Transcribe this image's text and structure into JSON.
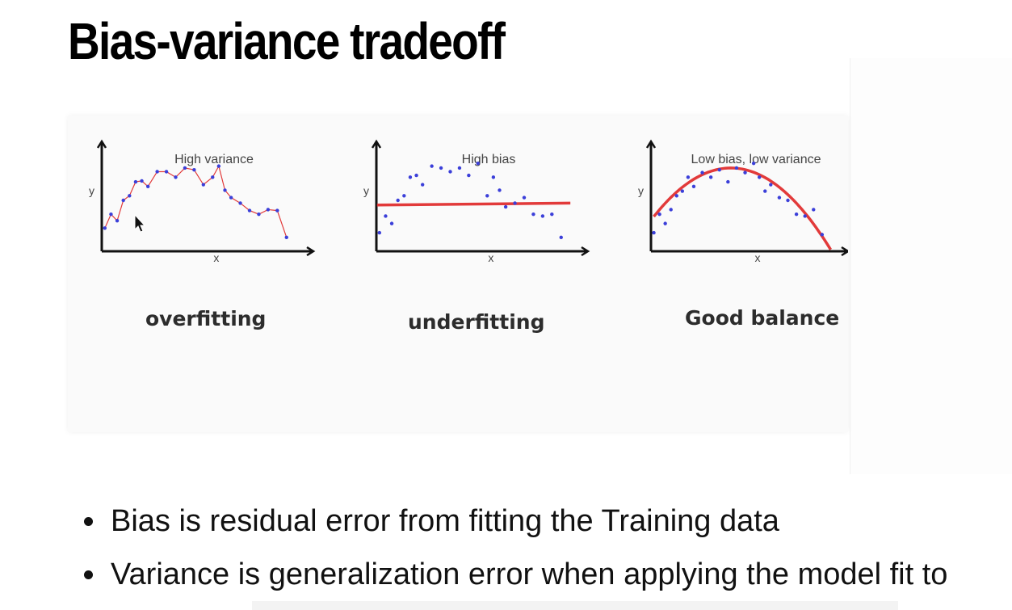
{
  "slide": {
    "title": "Bias-variance tradeoff",
    "bullets": [
      "Bias is residual error from fitting the Training data",
      "Variance is generalization error when applying the model fit to"
    ]
  },
  "figure": {
    "colors": {
      "points": "#3b3fd9",
      "fit_line": "#e23a3a",
      "axis": "#111111"
    },
    "icons": [
      "mouse-cursor-icon"
    ]
  },
  "chart_data": [
    {
      "type": "line",
      "title": "High variance",
      "xlabel": "x",
      "ylabel": "y",
      "caption": "overfitting",
      "x": [
        1,
        3,
        5,
        7,
        9,
        11,
        13,
        15,
        18,
        21,
        24,
        27,
        30,
        33,
        36,
        38,
        40,
        42,
        45,
        48,
        51,
        54,
        57,
        60
      ],
      "points": [
        25,
        40,
        33,
        55,
        60,
        75,
        76,
        70,
        86,
        86,
        80,
        90,
        88,
        72,
        80,
        92,
        66,
        58,
        52,
        44,
        40,
        45,
        44,
        15
      ],
      "fit": "interpolating (connects every point)",
      "xlim": [
        0,
        64
      ],
      "ylim": [
        0,
        110
      ]
    },
    {
      "type": "scatter",
      "title": "High bias",
      "xlabel": "x",
      "ylabel": "y",
      "caption": "underfitting",
      "x": [
        1,
        3,
        5,
        7,
        9,
        11,
        13,
        15,
        18,
        21,
        24,
        27,
        30,
        33,
        36,
        38,
        40,
        42,
        45,
        48,
        51,
        54,
        57,
        60
      ],
      "points": [
        20,
        38,
        30,
        55,
        60,
        80,
        82,
        72,
        92,
        90,
        86,
        90,
        82,
        95,
        60,
        80,
        66,
        48,
        52,
        58,
        40,
        38,
        40,
        15
      ],
      "fit_line": {
        "start": 50,
        "end": 52
      },
      "xlim": [
        0,
        64
      ],
      "ylim": [
        0,
        110
      ]
    },
    {
      "type": "scatter",
      "title": "Low bias, low variance",
      "xlabel": "x",
      "ylabel": "y",
      "caption": "Good balance",
      "x": [
        1,
        3,
        5,
        7,
        9,
        11,
        13,
        15,
        18,
        21,
        24,
        27,
        30,
        33,
        36,
        38,
        40,
        42,
        45,
        48,
        51,
        54,
        57,
        60
      ],
      "points": [
        20,
        40,
        30,
        45,
        60,
        65,
        80,
        70,
        85,
        80,
        88,
        75,
        90,
        85,
        95,
        80,
        65,
        72,
        58,
        55,
        40,
        38,
        45,
        18
      ],
      "fit_curve": "quadratic, peak ~90 at x≈28",
      "xlim": [
        0,
        64
      ],
      "ylim": [
        0,
        110
      ]
    }
  ]
}
